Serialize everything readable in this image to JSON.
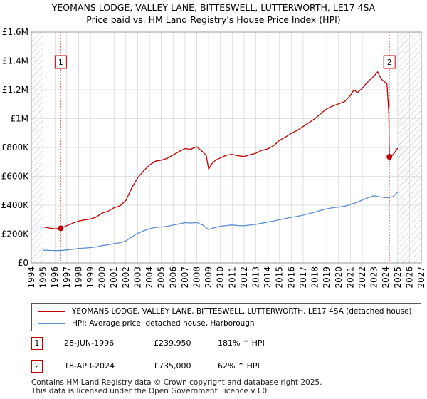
{
  "title_line1": "YEOMANS LODGE, VALLEY LANE, BITTESWELL, LUTTERWORTH, LE17 4SA",
  "title_line2": "Price paid vs. HM Land Registry's House Price Index (HPI)",
  "colors": {
    "property": "#c00000",
    "hpi": "#5b8fd0",
    "grid": "#d8d8d8",
    "hatch": "#bbbbbb",
    "marker": "#e06060"
  },
  "chart_data": {
    "type": "line",
    "xlim": [
      1994,
      2027
    ],
    "ylim": [
      0,
      1600000
    ],
    "x_ticks": [
      1994,
      1995,
      1996,
      1997,
      1998,
      1999,
      2000,
      2001,
      2002,
      2003,
      2004,
      2005,
      2006,
      2007,
      2008,
      2009,
      2010,
      2011,
      2012,
      2013,
      2014,
      2015,
      2016,
      2017,
      2018,
      2019,
      2020,
      2021,
      2022,
      2023,
      2024,
      2025,
      2026,
      2027
    ],
    "y_ticks": [
      {
        "value": 0,
        "label": "£0"
      },
      {
        "value": 200000,
        "label": "£200K"
      },
      {
        "value": 400000,
        "label": "£400K"
      },
      {
        "value": 600000,
        "label": "£600K"
      },
      {
        "value": 800000,
        "label": "£800K"
      },
      {
        "value": 1000000,
        "label": "£1M"
      },
      {
        "value": 1200000,
        "label": "£1.2M"
      },
      {
        "value": 1400000,
        "label": "£1.4M"
      },
      {
        "value": 1600000,
        "label": "£1.6M"
      }
    ],
    "hatched_ranges": [
      [
        1994,
        1995.0
      ],
      [
        2025.0,
        2027
      ]
    ],
    "series": [
      {
        "name": "YEOMANS LODGE, VALLEY LANE, BITTESWELL, LUTTERWORTH, LE17 4SA (detached house)",
        "x": [
          1995.0,
          1995.5,
          1996.0,
          1996.49,
          1997.0,
          1997.5,
          1998.0,
          1998.5,
          1999.0,
          1999.5,
          2000.0,
          2000.5,
          2001.0,
          2001.5,
          2002.0,
          2002.5,
          2003.0,
          2003.5,
          2004.0,
          2004.5,
          2005.0,
          2005.5,
          2006.0,
          2006.5,
          2007.0,
          2007.5,
          2008.0,
          2008.5,
          2008.8,
          2009.0,
          2009.3,
          2009.6,
          2010.0,
          2010.5,
          2011.0,
          2011.5,
          2012.0,
          2012.5,
          2013.0,
          2013.5,
          2014.0,
          2014.5,
          2015.0,
          2015.5,
          2016.0,
          2016.5,
          2017.0,
          2017.5,
          2018.0,
          2018.5,
          2019.0,
          2019.5,
          2020.0,
          2020.5,
          2021.0,
          2021.3,
          2021.6,
          2022.0,
          2022.3,
          2022.6,
          2023.0,
          2023.3,
          2023.6,
          2023.9,
          2024.1,
          2024.25,
          2024.3,
          2024.5,
          2024.7,
          2025.0
        ],
        "values": [
          250000,
          242000,
          236000,
          239950,
          258000,
          275000,
          290000,
          298000,
          304000,
          318000,
          345000,
          358000,
          382000,
          395000,
          432000,
          520000,
          590000,
          638000,
          678000,
          705000,
          712000,
          725000,
          748000,
          772000,
          792000,
          788000,
          805000,
          770000,
          745000,
          650000,
          690000,
          712000,
          728000,
          746000,
          752000,
          742000,
          738000,
          750000,
          760000,
          780000,
          790000,
          812000,
          850000,
          872000,
          898000,
          918000,
          945000,
          972000,
          1000000,
          1035000,
          1068000,
          1088000,
          1102000,
          1118000,
          1160000,
          1200000,
          1180000,
          1210000,
          1240000,
          1265000,
          1295000,
          1325000,
          1275000,
          1255000,
          1240000,
          1040000,
          735000,
          742000,
          760000,
          795000
        ]
      },
      {
        "name": "HPI: Average price, detached house, Harborough",
        "x": [
          1995.0,
          1995.5,
          1996.0,
          1996.5,
          1997.0,
          1997.5,
          1998.0,
          1998.5,
          1999.0,
          1999.5,
          2000.0,
          2000.5,
          2001.0,
          2001.5,
          2002.0,
          2002.5,
          2003.0,
          2003.5,
          2004.0,
          2004.5,
          2005.0,
          2005.5,
          2006.0,
          2006.5,
          2007.0,
          2007.5,
          2008.0,
          2008.5,
          2009.0,
          2009.5,
          2010.0,
          2010.5,
          2011.0,
          2011.5,
          2012.0,
          2012.5,
          2013.0,
          2013.5,
          2014.0,
          2014.5,
          2015.0,
          2015.5,
          2016.0,
          2016.5,
          2017.0,
          2017.5,
          2018.0,
          2018.5,
          2019.0,
          2019.5,
          2020.0,
          2020.5,
          2021.0,
          2021.5,
          2022.0,
          2022.5,
          2023.0,
          2023.5,
          2024.0,
          2024.3,
          2024.6,
          2025.0
        ],
        "values": [
          88000,
          87000,
          86000,
          85300,
          90000,
          95000,
          100000,
          103000,
          106000,
          111000,
          120000,
          126000,
          134000,
          140000,
          152000,
          180000,
          205000,
          222000,
          237000,
          246000,
          249000,
          254000,
          262000,
          270000,
          279000,
          276000,
          280000,
          262000,
          232000,
          244000,
          254000,
          259000,
          263000,
          259000,
          258000,
          262000,
          267000,
          275000,
          283000,
          290000,
          300000,
          307000,
          316000,
          322000,
          331000,
          341000,
          352000,
          364000,
          375000,
          382000,
          387000,
          392000,
          405000,
          418000,
          435000,
          452000,
          465000,
          458000,
          452000,
          453000,
          460000,
          490000
        ]
      }
    ],
    "annotations": [
      {
        "id": "1",
        "x": 1996.49,
        "value": 239950
      },
      {
        "id": "2",
        "x": 2024.3,
        "value": 735000
      }
    ]
  },
  "legend": {
    "property": "YEOMANS LODGE, VALLEY LANE, BITTESWELL, LUTTERWORTH, LE17 4SA (detached house)",
    "hpi": "HPI: Average price, detached house, Harborough"
  },
  "transactions": [
    {
      "id": "1",
      "date": "28-JUN-1996",
      "price": "£239,950",
      "hpi": "181% ↑ HPI"
    },
    {
      "id": "2",
      "date": "18-APR-2024",
      "price": "£735,000",
      "hpi": "62% ↑ HPI"
    }
  ],
  "footer_line1": "Contains HM Land Registry data © Crown copyright and database right 2025.",
  "footer_line2": "This data is licensed under the Open Government Licence v3.0."
}
